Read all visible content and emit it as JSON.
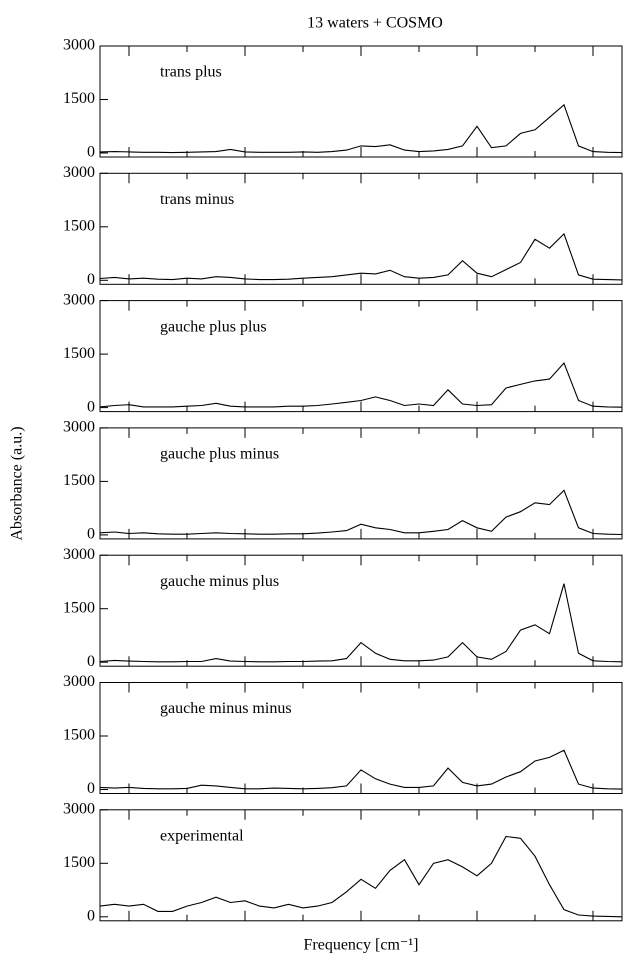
{
  "chart_data": [
    {
      "type": "line",
      "title": "13 waters + COSMO",
      "annotation": "trans plus",
      "color": "#000000",
      "x": [
        0,
        0.5,
        1,
        1.5,
        2,
        2.5,
        3,
        3.5,
        4,
        4.5,
        5,
        5.5,
        6,
        6.5,
        7,
        7.5,
        8,
        8.5,
        9,
        9.5,
        10,
        10.5,
        11,
        11.5,
        12,
        12.5,
        13,
        13.5,
        14,
        14.5,
        15,
        15.5,
        16,
        16.5,
        17,
        17.5,
        18
      ],
      "values": [
        30,
        40,
        30,
        20,
        20,
        10,
        20,
        30,
        40,
        100,
        30,
        20,
        20,
        20,
        30,
        20,
        40,
        80,
        200,
        180,
        230,
        80,
        40,
        60,
        100,
        200,
        750,
        150,
        200,
        550,
        650,
        1000,
        1350,
        200,
        40,
        20,
        10
      ],
      "xlim": [
        0,
        18
      ],
      "xticks": [
        1,
        3,
        5,
        7,
        9,
        11,
        13,
        15,
        17
      ],
      "ylim": [
        0,
        3000
      ],
      "yticks": [
        0,
        1500,
        3000
      ]
    },
    {
      "type": "line",
      "annotation": "trans minus",
      "color": "#000000",
      "x": [
        0,
        0.5,
        1,
        1.5,
        2,
        2.5,
        3,
        3.5,
        4,
        4.5,
        5,
        5.5,
        6,
        6.5,
        7,
        7.5,
        8,
        8.5,
        9,
        9.5,
        10,
        10.5,
        11,
        11.5,
        12,
        12.5,
        13,
        13.5,
        14,
        14.5,
        15,
        15.5,
        16,
        16.5,
        17,
        17.5,
        18
      ],
      "values": [
        50,
        80,
        40,
        60,
        30,
        20,
        60,
        40,
        100,
        80,
        40,
        20,
        20,
        30,
        60,
        80,
        100,
        150,
        200,
        180,
        280,
        100,
        60,
        80,
        150,
        550,
        200,
        100,
        300,
        500,
        1150,
        900,
        1300,
        150,
        30,
        20,
        10
      ],
      "xlim": [
        0,
        18
      ],
      "xticks": [
        1,
        3,
        5,
        7,
        9,
        11,
        13,
        15,
        17
      ],
      "ylim": [
        0,
        3000
      ],
      "yticks": [
        0,
        1500,
        3000
      ]
    },
    {
      "type": "line",
      "annotation": "gauche plus plus",
      "color": "#000000",
      "x": [
        0,
        0.5,
        1,
        1.5,
        2,
        2.5,
        3,
        3.5,
        4,
        4.5,
        5,
        5.5,
        6,
        6.5,
        7,
        7.5,
        8,
        8.5,
        9,
        9.5,
        10,
        10.5,
        11,
        11.5,
        12,
        12.5,
        13,
        13.5,
        14,
        14.5,
        15,
        15.5,
        16,
        16.5,
        17,
        17.5,
        18
      ],
      "values": [
        20,
        60,
        80,
        20,
        20,
        20,
        40,
        60,
        120,
        40,
        20,
        20,
        20,
        40,
        40,
        60,
        100,
        150,
        200,
        300,
        200,
        60,
        100,
        60,
        500,
        100,
        60,
        80,
        550,
        650,
        750,
        800,
        1250,
        200,
        40,
        20,
        10
      ],
      "xlim": [
        0,
        18
      ],
      "xticks": [
        1,
        3,
        5,
        7,
        9,
        11,
        13,
        15,
        17
      ],
      "ylim": [
        0,
        3000
      ],
      "yticks": [
        0,
        1500,
        3000
      ]
    },
    {
      "type": "line",
      "annotation": "gauche plus minus",
      "ylabel": "Absorbance (a.u.)",
      "color": "#000000",
      "x": [
        0,
        0.5,
        1,
        1.5,
        2,
        2.5,
        3,
        3.5,
        4,
        4.5,
        5,
        5.5,
        6,
        6.5,
        7,
        7.5,
        8,
        8.5,
        9,
        9.5,
        10,
        10.5,
        11,
        11.5,
        12,
        12.5,
        13,
        13.5,
        14,
        14.5,
        15,
        15.5,
        16,
        16.5,
        17,
        17.5,
        18
      ],
      "values": [
        60,
        80,
        40,
        60,
        30,
        20,
        20,
        40,
        60,
        40,
        30,
        20,
        20,
        30,
        30,
        50,
        80,
        120,
        300,
        200,
        150,
        60,
        60,
        100,
        150,
        400,
        200,
        100,
        500,
        650,
        900,
        850,
        1250,
        200,
        40,
        20,
        10
      ],
      "xlim": [
        0,
        18
      ],
      "xticks": [
        1,
        3,
        5,
        7,
        9,
        11,
        13,
        15,
        17
      ],
      "ylim": [
        0,
        3000
      ],
      "yticks": [
        0,
        1500,
        3000
      ]
    },
    {
      "type": "line",
      "annotation": "gauche minus plus",
      "color": "#000000",
      "x": [
        0,
        0.5,
        1,
        1.5,
        2,
        2.5,
        3,
        3.5,
        4,
        4.5,
        5,
        5.5,
        6,
        6.5,
        7,
        7.5,
        8,
        8.5,
        9,
        9.5,
        10,
        10.5,
        11,
        11.5,
        12,
        12.5,
        13,
        13.5,
        14,
        14.5,
        15,
        15.5,
        16,
        16.5,
        17,
        17.5,
        18
      ],
      "values": [
        20,
        50,
        30,
        20,
        10,
        10,
        20,
        20,
        100,
        30,
        20,
        10,
        10,
        20,
        20,
        30,
        40,
        100,
        550,
        250,
        80,
        40,
        40,
        60,
        150,
        550,
        150,
        80,
        300,
        900,
        1050,
        800,
        2200,
        250,
        40,
        20,
        10
      ],
      "xlim": [
        0,
        18
      ],
      "xticks": [
        1,
        3,
        5,
        7,
        9,
        11,
        13,
        15,
        17
      ],
      "ylim": [
        0,
        3000
      ],
      "yticks": [
        0,
        1500,
        3000
      ]
    },
    {
      "type": "line",
      "annotation": "gauche minus minus",
      "color": "#000000",
      "x": [
        0,
        0.5,
        1,
        1.5,
        2,
        2.5,
        3,
        3.5,
        4,
        4.5,
        5,
        5.5,
        6,
        6.5,
        7,
        7.5,
        8,
        8.5,
        9,
        9.5,
        10,
        10.5,
        11,
        11.5,
        12,
        12.5,
        13,
        13.5,
        14,
        14.5,
        15,
        15.5,
        16,
        16.5,
        17,
        17.5,
        18
      ],
      "values": [
        60,
        40,
        60,
        30,
        20,
        20,
        30,
        120,
        100,
        60,
        20,
        20,
        40,
        30,
        20,
        30,
        50,
        100,
        550,
        300,
        150,
        60,
        60,
        100,
        600,
        200,
        100,
        150,
        350,
        500,
        800,
        900,
        1100,
        150,
        40,
        20,
        10
      ],
      "xlim": [
        0,
        18
      ],
      "xticks": [
        1,
        3,
        5,
        7,
        9,
        11,
        13,
        15,
        17
      ],
      "ylim": [
        0,
        3000
      ],
      "yticks": [
        0,
        1500,
        3000
      ]
    },
    {
      "type": "line",
      "annotation": "experimental",
      "xlabel": "Frequency [cm⁻¹]",
      "color": "#000000",
      "x": [
        0,
        0.5,
        1,
        1.5,
        2,
        2.5,
        3,
        3.5,
        4,
        4.5,
        5,
        5.5,
        6,
        6.5,
        7,
        7.5,
        8,
        8.5,
        9,
        9.5,
        10,
        10.5,
        11,
        11.5,
        12,
        12.5,
        13,
        13.5,
        14,
        14.5,
        15,
        15.5,
        16,
        16.5,
        17,
        17.5,
        18
      ],
      "values": [
        300,
        350,
        300,
        350,
        150,
        150,
        300,
        400,
        550,
        400,
        450,
        300,
        250,
        350,
        250,
        300,
        400,
        700,
        1050,
        800,
        1300,
        1600,
        900,
        1500,
        1600,
        1400,
        1150,
        1500,
        2250,
        2200,
        1700,
        900,
        200,
        50,
        20,
        10,
        0
      ],
      "xlim": [
        0,
        18
      ],
      "xticks": [
        1,
        3,
        5,
        7,
        9,
        11,
        13,
        15,
        17
      ],
      "ylim": [
        0,
        3000
      ],
      "yticks": [
        0,
        1500,
        3000
      ]
    }
  ]
}
